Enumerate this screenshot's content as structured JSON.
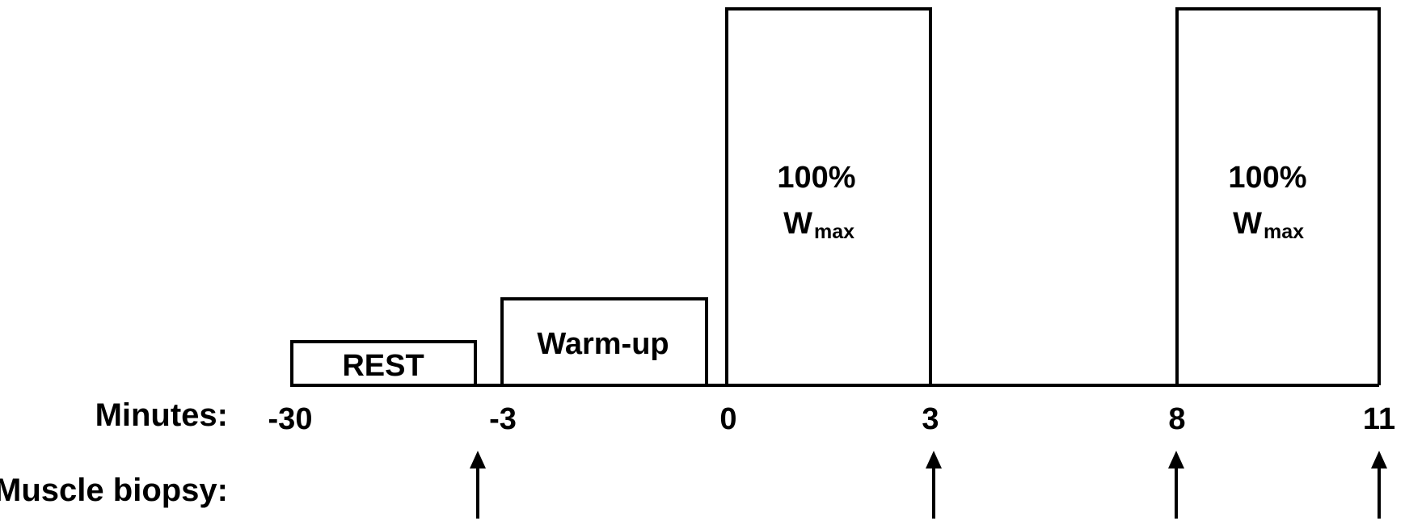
{
  "colors": {
    "stroke": "#000000",
    "background": "#ffffff"
  },
  "row_labels": {
    "minutes": "Minutes:",
    "biopsy": "Muscle biopsy:"
  },
  "blocks": [
    {
      "id": "rest",
      "label": "REST"
    },
    {
      "id": "warmup",
      "label": "Warm-up"
    },
    {
      "id": "bout1",
      "label": "100%",
      "w": "W",
      "sub": "max"
    },
    {
      "id": "bout2",
      "label": "100%",
      "w": "W",
      "sub": "max"
    }
  ],
  "ticks": [
    "-30",
    "-3",
    "0",
    "3",
    "8",
    "11"
  ],
  "biopsy_times": [
    "-3",
    "3",
    "8",
    "11"
  ]
}
